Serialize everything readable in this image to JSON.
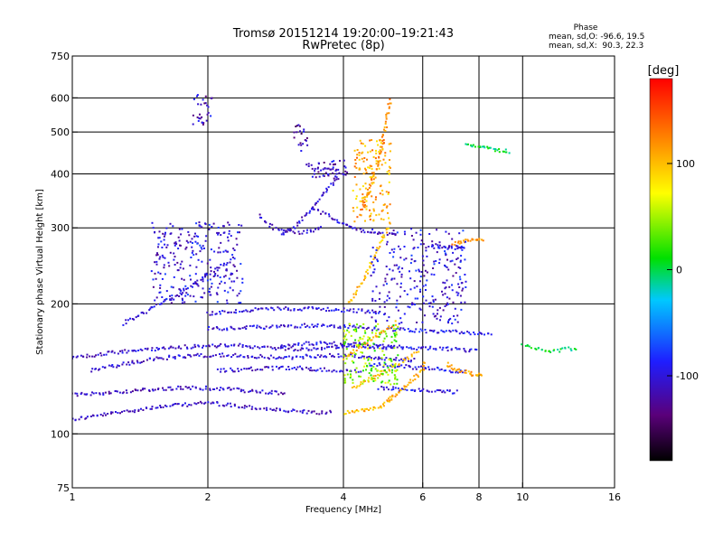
{
  "chart_data": {
    "type": "scatter",
    "title": "Tromsø 20151214 19:20:00–19:21:43",
    "subtitle": "RwPretec (8p)",
    "xlabel": "Frequency [MHz]",
    "ylabel": "Stationary phase Virtual Height [km]",
    "x_scale": "log",
    "y_scale": "log",
    "xlim": [
      1,
      16
    ],
    "ylim": [
      75,
      750
    ],
    "xticks": [
      1,
      2,
      4,
      6,
      8,
      10,
      16
    ],
    "yticks": [
      75,
      100,
      200,
      300,
      400,
      500,
      600,
      750
    ],
    "x_gridlines": [
      2,
      4,
      6,
      8,
      10
    ],
    "y_gridlines": [
      100,
      200,
      300,
      400,
      500,
      600
    ],
    "grid": true,
    "stats": {
      "heading": "Phase",
      "line_o": "mean, sd,O: -96.6, 19.5",
      "line_x": "mean, sd,X:  90.3, 22.3"
    },
    "colorbar": {
      "label": "[deg]",
      "range": [
        -180,
        180
      ],
      "ticks": [
        100,
        0,
        -100
      ],
      "placement": "right"
    },
    "traces": [
      {
        "name": "",
        "phase": -110,
        "x": [
          1.0,
          1.5,
          2.0,
          2.5,
          3.0,
          3.5,
          3.8
        ],
        "y": [
          108,
          115,
          118,
          115,
          113,
          112,
          112
        ]
      },
      {
        "name": "",
        "phase": -110,
        "x": [
          1.0,
          1.4,
          1.8,
          2.2,
          2.6,
          3.0
        ],
        "y": [
          123,
          126,
          128,
          127,
          125,
          124
        ]
      },
      {
        "name": "",
        "phase": -105,
        "x": [
          1.0,
          1.3,
          1.6,
          2.0,
          2.4,
          2.8,
          3.2,
          3.6,
          4.0,
          4.5
        ],
        "y": [
          150,
          155,
          158,
          160,
          160,
          158,
          157,
          158,
          160,
          162
        ]
      },
      {
        "name": "",
        "phase": -105,
        "x": [
          1.1,
          1.3,
          1.6,
          1.9,
          2.2,
          2.6,
          3.0
        ],
        "y": [
          140,
          145,
          150,
          152,
          152,
          151,
          150
        ]
      },
      {
        "name": "",
        "phase": -100,
        "x": [
          1.3,
          1.5,
          1.8,
          2.0,
          2.3
        ],
        "y": [
          180,
          195,
          215,
          235,
          255
        ]
      },
      {
        "name": "",
        "phase": -100,
        "x": [
          2.0,
          2.4,
          2.8,
          3.2,
          3.6,
          4.0,
          4.4,
          4.8
        ],
        "y": [
          175,
          176,
          177,
          178,
          178,
          177,
          176,
          175
        ]
      },
      {
        "name": "",
        "phase": -100,
        "x": [
          2.0,
          2.3,
          2.6,
          3.0,
          3.4,
          3.8,
          4.2,
          4.6,
          5.0
        ],
        "y": [
          190,
          192,
          194,
          195,
          195,
          194,
          193,
          192,
          190
        ]
      },
      {
        "name": "",
        "phase": -105,
        "x": [
          2.1,
          2.4,
          2.8,
          3.2,
          3.6,
          4.0,
          4.4
        ],
        "y": [
          140,
          141,
          142,
          142,
          141,
          140,
          139
        ]
      },
      {
        "name": "",
        "phase": -100,
        "x": [
          3.0,
          3.3,
          3.6,
          4.0,
          4.4,
          4.8,
          5.3,
          5.8
        ],
        "y": [
          150,
          151,
          152,
          152,
          151,
          150,
          149,
          148
        ]
      },
      {
        "name": "",
        "phase": -100,
        "x": [
          2.9,
          3.1,
          3.4,
          3.7,
          4.0,
          4.4,
          4.8,
          5.2
        ],
        "y": [
          160,
          161,
          162,
          162,
          161,
          160,
          159,
          158
        ]
      },
      {
        "name": "",
        "phase": -95,
        "x": [
          4.6,
          5.0,
          5.5,
          6.0,
          6.5,
          7.0,
          7.5
        ],
        "y": [
          145,
          144,
          143,
          142,
          141,
          140,
          139
        ]
      },
      {
        "name": "",
        "phase": -95,
        "x": [
          4.6,
          5.2,
          5.8,
          6.4,
          7.0,
          7.6,
          8.0
        ],
        "y": [
          160,
          159,
          158,
          158,
          157,
          156,
          156
        ]
      },
      {
        "name": "",
        "phase": -95,
        "x": [
          5.0,
          5.6,
          6.2,
          6.8,
          7.4,
          8.0,
          8.6
        ],
        "y": [
          175,
          174,
          173,
          172,
          172,
          171,
          170
        ]
      },
      {
        "name": "",
        "phase": -100,
        "x": [
          4.8,
          5.3,
          5.8,
          6.3,
          6.8,
          7.2
        ],
        "y": [
          128,
          127,
          126,
          126,
          125,
          125
        ]
      },
      {
        "name": "",
        "phase": 0,
        "x": [
          10.0,
          10.6,
          11.2,
          11.8,
          12.5,
          13.2
        ],
        "y": [
          160,
          158,
          156,
          156,
          157,
          158
        ]
      },
      {
        "name": "",
        "phase": -105,
        "x": [
          2.9,
          3.1,
          3.3,
          3.5,
          3.7,
          3.9
        ],
        "y": [
          290,
          300,
          320,
          345,
          370,
          395
        ]
      },
      {
        "name": "",
        "phase": -110,
        "x": [
          2.6,
          2.8,
          3.0,
          3.2,
          3.4,
          3.6
        ],
        "y": [
          320,
          300,
          295,
          293,
          295,
          300
        ]
      },
      {
        "name": "",
        "phase": -105,
        "x": [
          3.4,
          3.6,
          3.8,
          4.0,
          4.2,
          4.4,
          4.7,
          5.0,
          5.3
        ],
        "y": [
          330,
          325,
          315,
          305,
          300,
          296,
          292,
          290,
          288
        ]
      },
      {
        "name": "",
        "phase": -110,
        "x": [
          3.3,
          3.5,
          3.7,
          3.9,
          4.1
        ],
        "y": [
          420,
          412,
          408,
          405,
          400
        ]
      },
      {
        "name": "",
        "phase": -100,
        "x": [
          6.2,
          6.5,
          6.8,
          7.1,
          7.4
        ],
        "y": [
          272,
          271,
          270,
          270,
          271
        ]
      },
      {
        "name": "",
        "phase": 0,
        "x": [
          7.5,
          7.8,
          8.2,
          8.6,
          9.0,
          9.4
        ],
        "y": [
          470,
          465,
          460,
          455,
          452,
          450
        ]
      },
      {
        "name": "",
        "phase": 100,
        "x": [
          4.0,
          4.2,
          4.4,
          4.6,
          4.8,
          5.0,
          5.2
        ],
        "y": [
          112,
          112,
          113,
          114,
          115,
          118,
          122
        ]
      },
      {
        "name": "",
        "phase": 110,
        "x": [
          5.0,
          5.2,
          5.4,
          5.6,
          5.8,
          6.0,
          6.1
        ],
        "y": [
          120,
          123,
          127,
          131,
          136,
          141,
          147
        ]
      },
      {
        "name": "",
        "phase": 105,
        "x": [
          4.2,
          4.4,
          4.6,
          4.8,
          5.0,
          5.3,
          5.6,
          5.9
        ],
        "y": [
          128,
          131,
          134,
          137,
          140,
          145,
          150,
          156
        ]
      },
      {
        "name": "",
        "phase": 110,
        "x": [
          4.0,
          4.2,
          4.4,
          4.6,
          4.8,
          5.0,
          5.3
        ],
        "y": [
          150,
          155,
          160,
          165,
          170,
          175,
          182
        ]
      },
      {
        "name": "",
        "phase": 100,
        "x": [
          4.1,
          4.3,
          4.5,
          4.7,
          4.9,
          5.1
        ],
        "y": [
          200,
          215,
          235,
          260,
          285,
          310
        ]
      },
      {
        "name": "",
        "phase": 120,
        "x": [
          4.4,
          4.6,
          4.8,
          4.9,
          5.0,
          5.1
        ],
        "y": [
          330,
          380,
          430,
          480,
          540,
          600
        ]
      },
      {
        "name": "",
        "phase": 110,
        "x": [
          6.8,
          7.0,
          7.3,
          7.6,
          7.9,
          8.2
        ],
        "y": [
          145,
          142,
          140,
          138,
          137,
          136
        ]
      },
      {
        "name": "",
        "phase": 115,
        "x": [
          7.0,
          7.3,
          7.6,
          7.9,
          8.2
        ],
        "y": [
          275,
          278,
          280,
          281,
          282
        ]
      }
    ],
    "clusters": [
      {
        "name": "",
        "phase": -110,
        "x_range": [
          1.85,
          2.05
        ],
        "y_range": [
          520,
          610
        ]
      },
      {
        "name": "",
        "phase": -120,
        "x_range": [
          3.1,
          3.35
        ],
        "y_range": [
          450,
          520
        ]
      },
      {
        "name": "",
        "phase": -110,
        "x_range": [
          3.4,
          4.1
        ],
        "y_range": [
          390,
          430
        ]
      },
      {
        "name": "",
        "phase": 110,
        "x_range": [
          4.2,
          5.1
        ],
        "y_range": [
          310,
          480
        ]
      },
      {
        "name": "",
        "phase": 40,
        "x_range": [
          4.0,
          5.3
        ],
        "y_range": [
          130,
          180
        ]
      },
      {
        "name": "",
        "phase": -100,
        "x_range": [
          1.5,
          2.4
        ],
        "y_range": [
          200,
          310
        ]
      },
      {
        "name": "",
        "phase": -100,
        "x_range": [
          4.6,
          7.5
        ],
        "y_range": [
          180,
          300
        ]
      }
    ]
  }
}
